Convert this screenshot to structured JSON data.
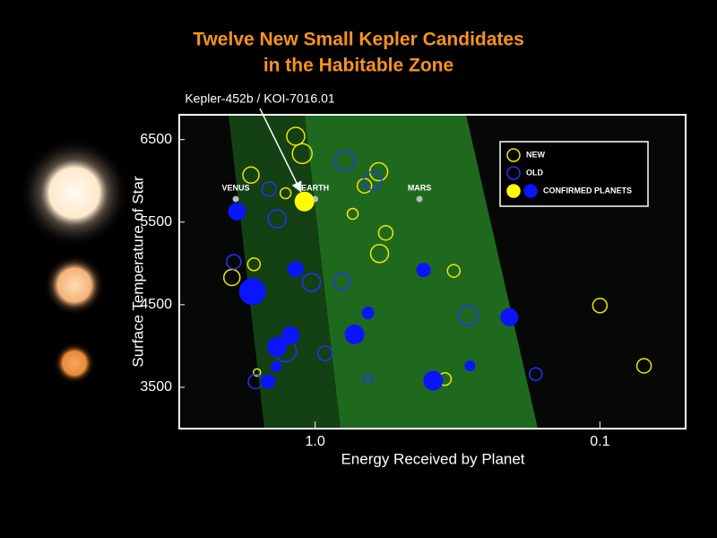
{
  "chart_data": {
    "type": "scatter",
    "title": [
      "Twelve New Small Kepler Candidates",
      "in the Habitable Zone"
    ],
    "x_label": "Energy Received by Planet",
    "y_label": "Surface Temperature of Star",
    "xscale": "log",
    "xlim": [
      3,
      0.05
    ],
    "xticks": [
      {
        "value": 1,
        "label": "1.0"
      },
      0.1
    ],
    "ylim": [
      3000,
      6800
    ],
    "yticks": [
      3500,
      4500,
      5500,
      6500
    ],
    "legend": "upper right",
    "annotation": {
      "text": "Kepler-452b / KOI-7016.01",
      "series": 2,
      "index": 0
    },
    "reference_planets": [
      {
        "label": "VENUS",
        "x": 1.9,
        "y": 5780
      },
      {
        "label": "EARTH",
        "x": 1,
        "y": 5780
      },
      {
        "label": "MARS",
        "x": 0.43,
        "y": 5780
      }
    ],
    "series": [
      {
        "name": "NEW",
        "color": "#f2e600",
        "filled": false,
        "x": [
          1.17,
          1.11,
          1.68,
          0.598,
          0.671,
          1.27,
          0.738,
          0.565,
          0.594,
          1.64,
          1.96,
          0.326,
          0.1,
          0.07,
          1.6,
          0.35
        ],
        "values": [
          6540,
          6330,
          6070,
          6110,
          5940,
          5850,
          5600,
          5370,
          5120,
          4990,
          4830,
          4910,
          4490,
          3760,
          3680,
          3600
        ],
        "sizes": [
          10,
          11,
          9,
          10,
          8,
          6,
          6,
          8,
          10,
          7,
          9,
          7,
          8,
          8,
          4,
          7
        ]
      },
      {
        "name": "OLD",
        "color": "#2233ff",
        "filled": false,
        "x": [
          0.787,
          1.45,
          0.629,
          1.36,
          1.93,
          1.03,
          0.805,
          0.29,
          0.923,
          1.27,
          0.168,
          1.62,
          0.652
        ],
        "values": [
          6240,
          5900,
          6000,
          5540,
          5020,
          4770,
          4780,
          4370,
          3910,
          3940,
          3660,
          3570,
          3600
        ],
        "sizes": [
          11,
          8,
          10,
          10,
          8,
          10,
          9,
          11,
          8,
          12,
          7,
          8,
          5
        ]
      },
      {
        "name": "CONFIRMED PLANETS",
        "filled": true,
        "colors": [
          "#ffff00",
          "#0a14ff",
          "#0a14ff",
          "#0a14ff",
          "#0a14ff",
          "#0a14ff",
          "#0a14ff",
          "#0a14ff",
          "#0a14ff",
          "#0a14ff",
          "#0a14ff",
          "#0a14ff",
          "#0a14ff",
          "#0a14ff"
        ],
        "x": [
          1.09,
          1.88,
          1.17,
          1.66,
          0.416,
          0.652,
          0.208,
          1.22,
          0.727,
          1.36,
          1.37,
          0.286,
          1.46,
          0.385
        ],
        "values": [
          5750,
          5630,
          4930,
          4660,
          4920,
          4400,
          4350,
          4130,
          4140,
          3990,
          3750,
          3760,
          3570,
          3580
        ],
        "sizes": [
          11,
          10,
          9,
          15,
          8,
          7,
          10,
          10,
          11,
          11,
          6,
          6,
          8,
          11
        ]
      }
    ]
  }
}
